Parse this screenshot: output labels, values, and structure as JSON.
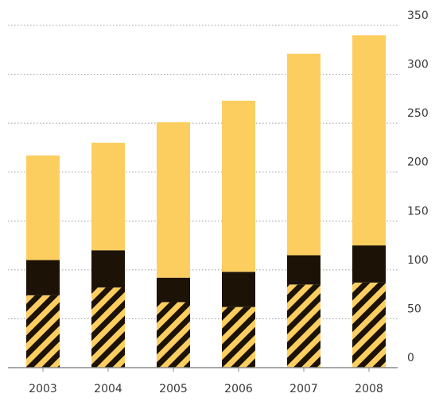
{
  "chart_data": {
    "type": "bar",
    "stacked": true,
    "categories": [
      "2003",
      "2004",
      "2005",
      "2006",
      "2007",
      "2008"
    ],
    "series": [
      {
        "values": [
          74,
          82,
          67,
          62,
          85,
          87
        ],
        "color": "#1c1206",
        "fill_pattern": "diagonal-stripes-yellow"
      },
      {
        "values": [
          36,
          38,
          25,
          36,
          30,
          38
        ],
        "color": "#1c1206"
      },
      {
        "values": [
          107,
          110,
          159,
          175,
          206,
          215
        ],
        "color": "#fcce60"
      }
    ],
    "y_tick_labels": [
      "0",
      "50",
      "100",
      "150",
      "200",
      "250",
      "300",
      "350"
    ],
    "ylim": [
      0,
      350
    ],
    "y_axis_position": "right",
    "grid": true,
    "grid_style": "dotted",
    "title": "",
    "xlabel": "",
    "ylabel": ""
  }
}
